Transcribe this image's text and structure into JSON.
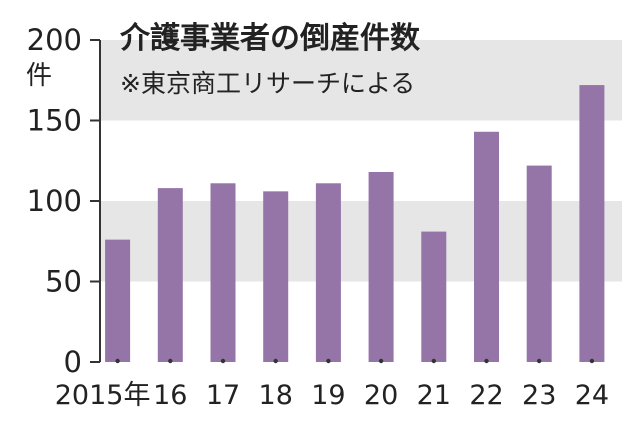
{
  "chart_data": {
    "type": "bar",
    "title": "介護事業者の倒産件数",
    "subtitle": "※東京商工リサーチによる",
    "ylabel": "件",
    "xlabel": "",
    "categories": [
      "2015年",
      "16",
      "17",
      "18",
      "19",
      "20",
      "21",
      "22",
      "23",
      "24"
    ],
    "values": [
      76,
      108,
      111,
      106,
      111,
      118,
      81,
      143,
      122,
      172
    ],
    "ylim": [
      0,
      200
    ],
    "yticks": [
      0,
      50,
      100,
      150,
      200
    ],
    "colors": {
      "bar": "#9574a8",
      "band": "#e6e6e6",
      "axis": "#333333"
    }
  }
}
